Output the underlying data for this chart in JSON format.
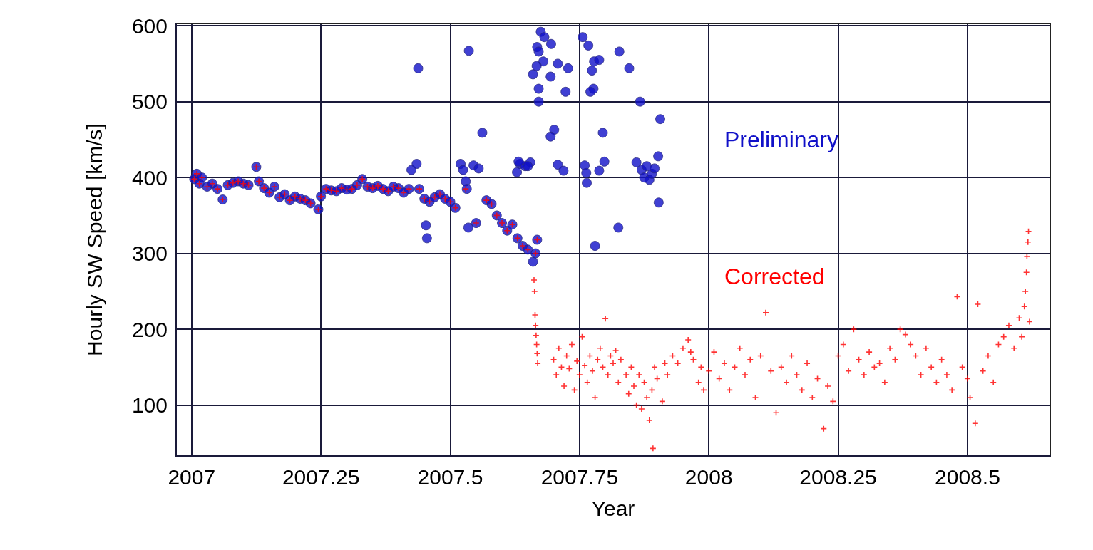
{
  "chart_data": {
    "type": "scatter",
    "xlabel": "Year",
    "ylabel": "Hourly SW Speed [km/s]",
    "xlim": [
      2006.97,
      2008.66
    ],
    "ylim": [
      33,
      603
    ],
    "xticks": [
      2007,
      2007.25,
      2007.5,
      2007.75,
      2008,
      2008.25,
      2008.5
    ],
    "yticks": [
      100,
      200,
      300,
      400,
      500,
      600
    ],
    "grid": true,
    "legend": false,
    "series": [
      {
        "name": "Preliminary",
        "color": "#1010c8",
        "marker": "circle",
        "x": [
          2007.005,
          2007.01,
          2007.015,
          2007.02,
          2007.03,
          2007.04,
          2007.05,
          2007.06,
          2007.07,
          2007.08,
          2007.09,
          2007.1,
          2007.11,
          2007.125,
          2007.13,
          2007.14,
          2007.15,
          2007.16,
          2007.17,
          2007.18,
          2007.19,
          2007.2,
          2007.21,
          2007.22,
          2007.23,
          2007.245,
          2007.25,
          2007.26,
          2007.27,
          2007.28,
          2007.29,
          2007.3,
          2007.31,
          2007.32,
          2007.33,
          2007.34,
          2007.35,
          2007.36,
          2007.37,
          2007.38,
          2007.39,
          2007.4,
          2007.41,
          2007.42,
          2007.425,
          2007.435,
          2007.438,
          2007.44,
          2007.45,
          2007.453,
          2007.455,
          2007.46,
          2007.47,
          2007.48,
          2007.49,
          2007.5,
          2007.51,
          2007.52,
          2007.525,
          2007.53,
          2007.532,
          2007.535,
          2007.536,
          2007.545,
          2007.55,
          2007.555,
          2007.562,
          2007.57,
          2007.58,
          2007.59,
          2007.6,
          2007.61,
          2007.62,
          2007.63,
          2007.635,
          2007.64,
          2007.645,
          2007.65,
          2007.655,
          2007.66,
          2007.665,
          2007.668,
          2007.675,
          2007.682,
          2007.695,
          2007.668,
          2007.671,
          2007.68,
          2007.708,
          2007.667,
          2007.66,
          2007.694,
          2007.728,
          2007.671,
          2007.723,
          2007.671,
          2007.701,
          2007.694,
          2007.632,
          2007.65,
          2007.629,
          2007.708,
          2007.719,
          2007.756,
          2007.767,
          2007.778,
          2007.788,
          2007.774,
          2007.827,
          2007.846,
          2007.777,
          2007.771,
          2007.867,
          2007.906,
          2007.795,
          2007.76,
          2007.763,
          2007.764,
          2007.798,
          2007.788,
          2007.86,
          2007.87,
          2007.875,
          2007.88,
          2007.885,
          2007.89,
          2007.895,
          2007.902,
          2007.903,
          2007.825,
          2007.78
        ],
        "values": [
          398,
          405,
          392,
          400,
          388,
          392,
          385,
          371,
          390,
          393,
          395,
          392,
          390,
          414,
          395,
          386,
          380,
          388,
          374,
          378,
          370,
          375,
          372,
          370,
          366,
          358,
          375,
          385,
          383,
          382,
          386,
          384,
          385,
          390,
          398,
          388,
          386,
          389,
          385,
          382,
          388,
          386,
          380,
          385,
          410,
          418,
          544,
          385,
          372,
          337,
          320,
          368,
          374,
          378,
          372,
          368,
          360,
          418,
          410,
          395,
          385,
          334,
          567,
          416,
          340,
          412,
          459,
          370,
          365,
          350,
          340,
          330,
          338,
          320,
          418,
          310,
          415,
          305,
          420,
          289,
          300,
          318,
          592,
          585,
          576,
          572,
          566,
          553,
          550,
          547,
          536,
          533,
          544,
          517,
          513,
          500,
          463,
          454,
          421,
          415,
          407,
          417,
          409,
          585,
          574,
          553,
          555,
          541,
          566,
          544,
          517,
          513,
          500,
          477,
          459,
          416,
          406,
          393,
          421,
          409,
          420,
          410,
          400,
          415,
          397,
          405,
          412,
          428,
          367,
          334,
          310
        ]
      },
      {
        "name": "Corrected",
        "color": "#ff0000",
        "marker": "cross",
        "x": [
          2007.005,
          2007.01,
          2007.015,
          2007.02,
          2007.03,
          2007.04,
          2007.05,
          2007.06,
          2007.07,
          2007.08,
          2007.09,
          2007.1,
          2007.11,
          2007.125,
          2007.13,
          2007.14,
          2007.15,
          2007.16,
          2007.17,
          2007.18,
          2007.19,
          2007.2,
          2007.21,
          2007.22,
          2007.23,
          2007.245,
          2007.25,
          2007.26,
          2007.27,
          2007.28,
          2007.29,
          2007.3,
          2007.31,
          2007.32,
          2007.33,
          2007.34,
          2007.35,
          2007.36,
          2007.37,
          2007.38,
          2007.39,
          2007.4,
          2007.41,
          2007.42,
          2007.44,
          2007.45,
          2007.46,
          2007.47,
          2007.48,
          2007.49,
          2007.5,
          2007.51,
          2007.53,
          2007.55,
          2007.57,
          2007.58,
          2007.59,
          2007.6,
          2007.61,
          2007.62,
          2007.63,
          2007.64,
          2007.65,
          2007.665,
          2007.668,
          2007.662,
          2007.663,
          2007.664,
          2007.665,
          2007.666,
          2007.667,
          2007.668,
          2007.669,
          2007.7,
          2007.705,
          2007.71,
          2007.715,
          2007.72,
          2007.725,
          2007.73,
          2007.735,
          2007.74,
          2007.745,
          2007.75,
          2007.755,
          2007.76,
          2007.765,
          2007.77,
          2007.775,
          2007.78,
          2007.785,
          2007.79,
          2007.795,
          2007.8,
          2007.805,
          2007.81,
          2007.815,
          2007.82,
          2007.825,
          2007.83,
          2007.84,
          2007.845,
          2007.85,
          2007.855,
          2007.86,
          2007.865,
          2007.87,
          2007.875,
          2007.88,
          2007.885,
          2007.89,
          2007.892,
          2007.895,
          2007.9,
          2007.91,
          2007.915,
          2007.92,
          2007.93,
          2007.94,
          2007.95,
          2007.96,
          2007.965,
          2007.97,
          2007.98,
          2007.985,
          2007.99,
          2008.0,
          2008.01,
          2008.02,
          2008.03,
          2008.04,
          2008.05,
          2008.06,
          2008.07,
          2008.08,
          2008.09,
          2008.1,
          2008.11,
          2008.12,
          2008.13,
          2008.14,
          2008.15,
          2008.16,
          2008.17,
          2008.18,
          2008.19,
          2008.2,
          2008.21,
          2008.222,
          2008.23,
          2008.24,
          2008.25,
          2008.26,
          2008.27,
          2008.28,
          2008.29,
          2008.3,
          2008.31,
          2008.32,
          2008.33,
          2008.34,
          2008.35,
          2008.36,
          2008.37,
          2008.38,
          2008.39,
          2008.4,
          2008.41,
          2008.42,
          2008.43,
          2008.44,
          2008.45,
          2008.46,
          2008.47,
          2008.48,
          2008.49,
          2008.5,
          2008.505,
          2008.515,
          2008.52,
          2008.53,
          2008.54,
          2008.55,
          2008.56,
          2008.57,
          2008.58,
          2008.59,
          2008.6,
          2008.605,
          2008.61,
          2008.612,
          2008.614,
          2008.615,
          2008.617,
          2008.618,
          2008.62
        ],
        "values": [
          398,
          405,
          392,
          400,
          388,
          392,
          385,
          371,
          390,
          393,
          395,
          392,
          390,
          414,
          395,
          386,
          380,
          388,
          374,
          378,
          370,
          375,
          372,
          370,
          366,
          358,
          375,
          385,
          383,
          382,
          386,
          384,
          385,
          390,
          398,
          388,
          386,
          389,
          385,
          382,
          388,
          386,
          380,
          385,
          385,
          372,
          368,
          374,
          378,
          372,
          368,
          360,
          385,
          340,
          370,
          365,
          350,
          340,
          330,
          338,
          320,
          310,
          305,
          300,
          318,
          265,
          250,
          219,
          205,
          192,
          180,
          168,
          155,
          160,
          140,
          175,
          150,
          125,
          165,
          148,
          180,
          120,
          158,
          140,
          190,
          152,
          130,
          165,
          145,
          110,
          160,
          175,
          150,
          214,
          140,
          165,
          155,
          172,
          130,
          160,
          140,
          115,
          150,
          125,
          100,
          140,
          95,
          130,
          110,
          80,
          120,
          43,
          150,
          135,
          105,
          155,
          140,
          165,
          155,
          175,
          186,
          170,
          160,
          130,
          150,
          120,
          145,
          170,
          135,
          155,
          120,
          150,
          175,
          140,
          160,
          110,
          165,
          222,
          145,
          90,
          150,
          130,
          165,
          140,
          120,
          155,
          110,
          135,
          69,
          125,
          105,
          165,
          180,
          145,
          200,
          160,
          140,
          170,
          150,
          155,
          130,
          175,
          160,
          200,
          193,
          180,
          165,
          140,
          175,
          150,
          130,
          160,
          140,
          120,
          243,
          150,
          135,
          110,
          76,
          233,
          145,
          165,
          130,
          180,
          190,
          205,
          175,
          215,
          190,
          230,
          250,
          275,
          296,
          315,
          329,
          210
        ]
      }
    ]
  }
}
